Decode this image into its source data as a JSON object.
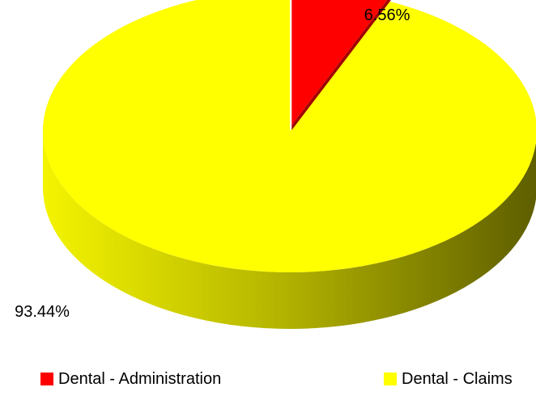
{
  "chart_data": {
    "type": "pie",
    "variant": "3d-exploded",
    "title": "",
    "slices": [
      {
        "label": "Dental - Administration",
        "value": 6.56,
        "display": "6.56%",
        "color": "#ff0000",
        "exploded": true
      },
      {
        "label": "Dental - Claims",
        "value": 93.44,
        "display": "93.44%",
        "color": "#ffff00",
        "exploded": false
      }
    ],
    "legend": {
      "position": "bottom"
    }
  }
}
